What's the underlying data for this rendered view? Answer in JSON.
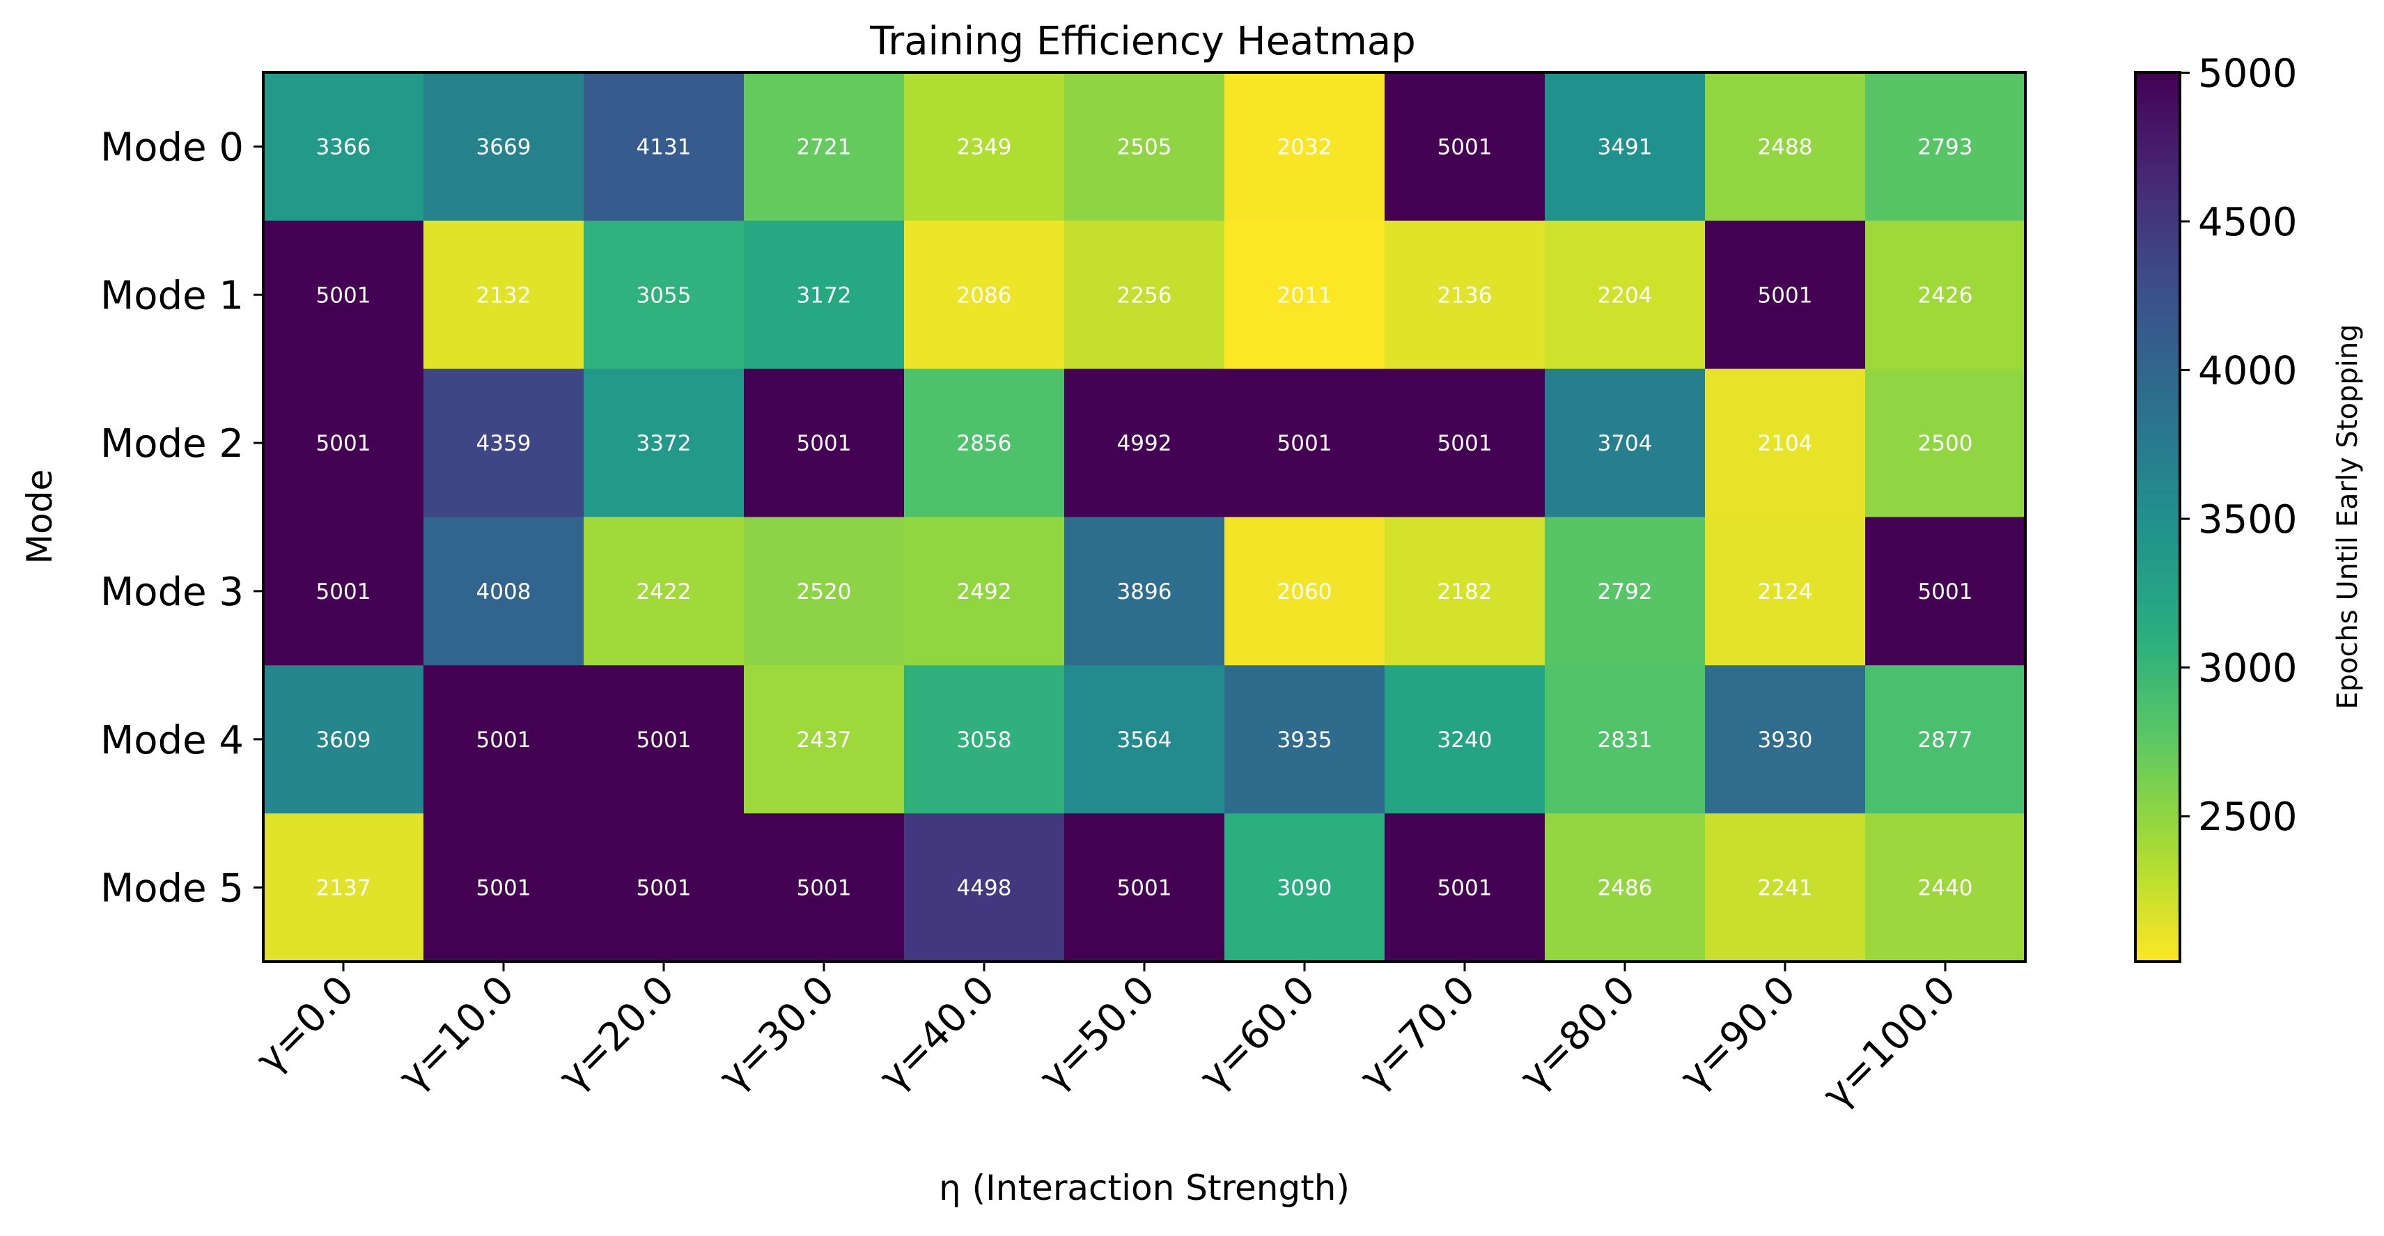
{
  "chart_data": {
    "type": "heatmap",
    "title": "Training Efficiency Heatmap",
    "xlabel": "η (Interaction Strength)",
    "ylabel": "Mode",
    "x_categories": [
      "γ=0.0",
      "γ=10.0",
      "γ=20.0",
      "γ=30.0",
      "γ=40.0",
      "γ=50.0",
      "γ=60.0",
      "γ=70.0",
      "γ=80.0",
      "γ=90.0",
      "γ=100.0"
    ],
    "y_categories": [
      "Mode 0",
      "Mode 1",
      "Mode 2",
      "Mode 3",
      "Mode 4",
      "Mode 5"
    ],
    "values": [
      [
        3366,
        3669,
        4131,
        2721,
        2349,
        2505,
        2032,
        5001,
        3491,
        2488,
        2793
      ],
      [
        5001,
        2132,
        3055,
        3172,
        2086,
        2256,
        2011,
        2136,
        2204,
        5001,
        2426
      ],
      [
        5001,
        4359,
        3372,
        5001,
        2856,
        4992,
        5001,
        5001,
        3704,
        2104,
        2500
      ],
      [
        5001,
        4008,
        2422,
        2520,
        2492,
        3896,
        2060,
        2182,
        2792,
        2124,
        5001
      ],
      [
        3609,
        5001,
        5001,
        2437,
        3058,
        3564,
        3935,
        3240,
        2831,
        3930,
        2877
      ],
      [
        2137,
        5001,
        5001,
        5001,
        4498,
        5001,
        3090,
        5001,
        2486,
        2241,
        2440
      ]
    ],
    "colormap": "viridis_r",
    "colorbar": {
      "label": "Epochs Until Early Stopping",
      "ticks": [
        2500,
        3000,
        3500,
        4000,
        4500,
        5000
      ],
      "range": [
        2011,
        5001
      ]
    },
    "annotations": "cell values shown in white"
  }
}
